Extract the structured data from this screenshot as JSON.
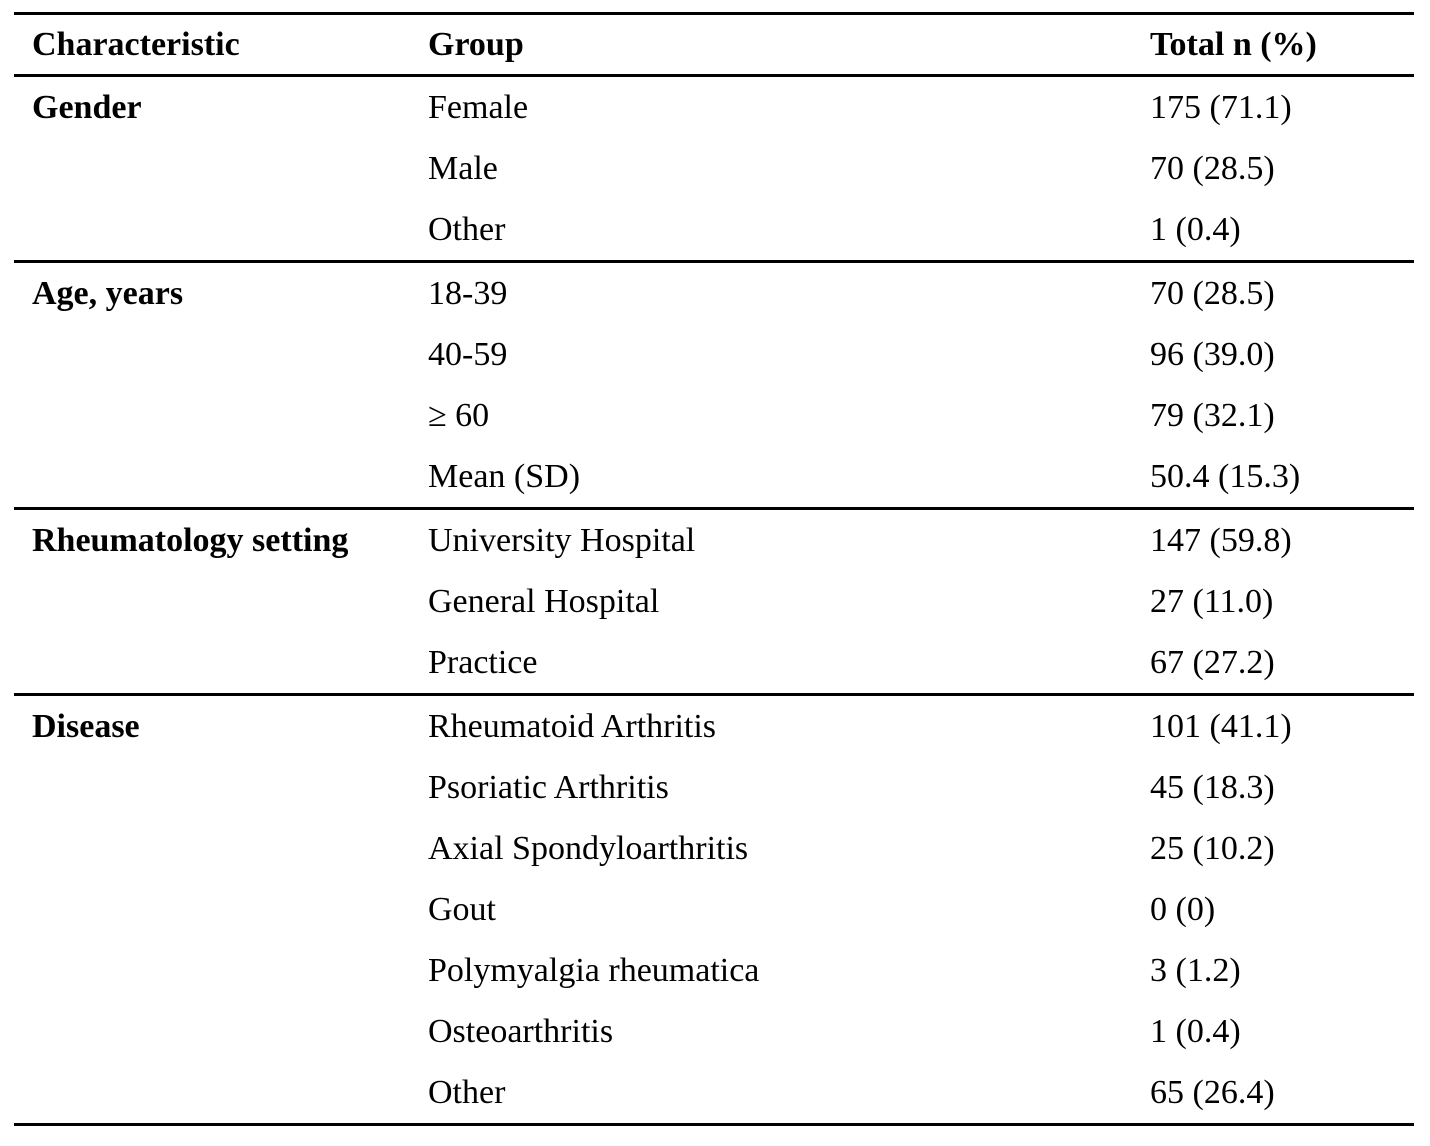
{
  "table": {
    "columns": {
      "characteristic": "Characteristic",
      "group": "Group",
      "total": "Total n (%)"
    },
    "sections": [
      {
        "characteristic": "Gender",
        "rows": [
          {
            "group": "Female",
            "total": "175 (71.1)"
          },
          {
            "group": "Male",
            "total": "70 (28.5)"
          },
          {
            "group": "Other",
            "total": "1 (0.4)"
          }
        ]
      },
      {
        "characteristic": "Age, years",
        "rows": [
          {
            "group": "18-39",
            "total": "70 (28.5)"
          },
          {
            "group": "40-59",
            "total": "96 (39.0)"
          },
          {
            "group": "≥ 60",
            "total": "79 (32.1)"
          },
          {
            "group": "Mean (SD)",
            "total": "50.4 (15.3)"
          }
        ]
      },
      {
        "characteristic": "Rheumatology setting",
        "rows": [
          {
            "group": "University Hospital",
            "total": "147 (59.8)"
          },
          {
            "group": "General Hospital",
            "total": "27 (11.0)"
          },
          {
            "group": "Practice",
            "total": "67 (27.2)"
          }
        ]
      },
      {
        "characteristic": "Disease",
        "rows": [
          {
            "group": "Rheumatoid Arthritis",
            "total": "101 (41.1)"
          },
          {
            "group": "Psoriatic Arthritis",
            "total": "45 (18.3)"
          },
          {
            "group": "Axial Spondyloarthritis",
            "total": "25 (10.2)"
          },
          {
            "group": "Gout",
            "total": "0 (0)"
          },
          {
            "group": "Polymyalgia rheumatica",
            "total": "3 (1.2)"
          },
          {
            "group": "Osteoarthritis",
            "total": "1 (0.4)"
          },
          {
            "group": "Other",
            "total": "65 (26.4)"
          }
        ]
      }
    ]
  }
}
